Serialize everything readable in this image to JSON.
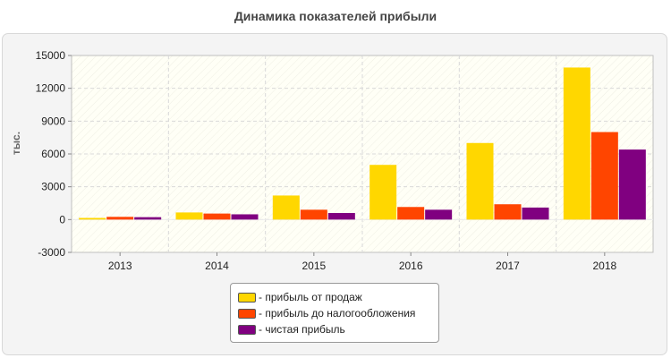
{
  "chart_data": {
    "type": "bar",
    "title": "Динамика показателей прибыли",
    "ylabel": "тыс.",
    "xlabel": "",
    "categories": [
      "2013",
      "2014",
      "2015",
      "2016",
      "2017",
      "2018"
    ],
    "ylim": [
      -3000,
      15000
    ],
    "yticks": [
      -3000,
      0,
      3000,
      6000,
      9000,
      12000,
      15000
    ],
    "grid": true,
    "legend_position": "bottom",
    "series": [
      {
        "name": "- прибыль от продаж",
        "color": "#FFD700",
        "values": [
          150,
          650,
          2200,
          5000,
          7000,
          13900
        ]
      },
      {
        "name": "- прибыль до налогообложения",
        "color": "#FF4500",
        "values": [
          250,
          550,
          900,
          1150,
          1400,
          8000
        ]
      },
      {
        "name": "- чистая прибыль",
        "color": "#800080",
        "values": [
          220,
          480,
          600,
          900,
          1100,
          6400
        ]
      }
    ]
  }
}
